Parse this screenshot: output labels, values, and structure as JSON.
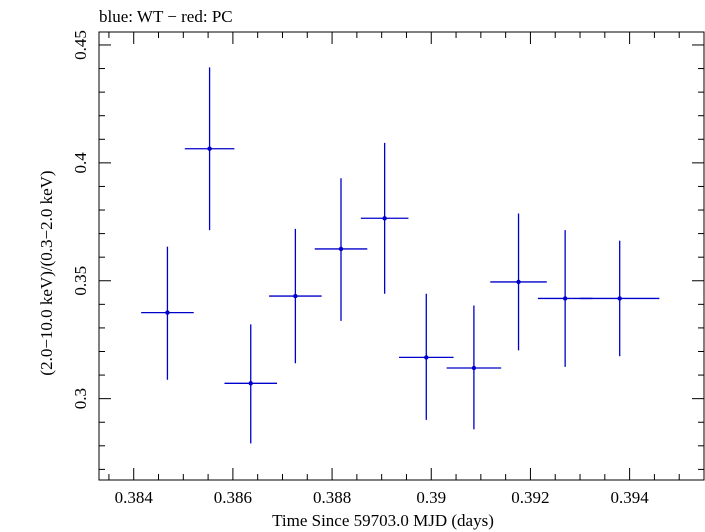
{
  "chart_data": {
    "type": "scatter",
    "title": "blue: WT − red: PC",
    "xlabel": "Time Since 59703.0 MJD (days)",
    "ylabel": "(2.0−10.0 keV)/(0.3−2.0 keV)",
    "xlim": [
      0.3833,
      0.3955
    ],
    "ylim": [
      0.2655,
      0.4555
    ],
    "x_ticks": [
      0.384,
      0.386,
      0.388,
      0.39,
      0.392,
      0.394
    ],
    "x_tick_labels": [
      "0.384",
      "0.386",
      "0.388",
      "0.39",
      "0.392",
      "0.394"
    ],
    "y_ticks": [
      0.3,
      0.35,
      0.4,
      0.45
    ],
    "y_tick_labels": [
      "0.3",
      "0.35",
      "0.4",
      "0.45"
    ],
    "grid": false,
    "series": [
      {
        "color": "#0000cc",
        "points": [
          {
            "x": 0.38468,
            "xerr": 0.00053,
            "y": 0.3365,
            "yerr_low": 0.0285,
            "yerr_high": 0.028
          },
          {
            "x": 0.38553,
            "xerr": 0.0005,
            "y": 0.406,
            "yerr_low": 0.0345,
            "yerr_high": 0.0345
          },
          {
            "x": 0.38636,
            "xerr": 0.00053,
            "y": 0.3065,
            "yerr_low": 0.0255,
            "yerr_high": 0.025
          },
          {
            "x": 0.38726,
            "xerr": 0.00053,
            "y": 0.3435,
            "yerr_low": 0.0285,
            "yerr_high": 0.0285
          },
          {
            "x": 0.38818,
            "xerr": 0.00053,
            "y": 0.3635,
            "yerr_low": 0.0305,
            "yerr_high": 0.03
          },
          {
            "x": 0.38906,
            "xerr": 0.00048,
            "y": 0.3765,
            "yerr_low": 0.032,
            "yerr_high": 0.032
          },
          {
            "x": 0.3899,
            "xerr": 0.00055,
            "y": 0.3175,
            "yerr_low": 0.0265,
            "yerr_high": 0.027
          },
          {
            "x": 0.39086,
            "xerr": 0.00055,
            "y": 0.313,
            "yerr_low": 0.026,
            "yerr_high": 0.0265
          },
          {
            "x": 0.39176,
            "xerr": 0.00057,
            "y": 0.3495,
            "yerr_low": 0.029,
            "yerr_high": 0.029
          },
          {
            "x": 0.3927,
            "xerr": 0.00055,
            "y": 0.3425,
            "yerr_low": 0.029,
            "yerr_high": 0.029
          },
          {
            "x": 0.3938,
            "xerr": 0.0008,
            "y": 0.3425,
            "yerr_low": 0.0245,
            "yerr_high": 0.0245
          }
        ]
      }
    ]
  }
}
